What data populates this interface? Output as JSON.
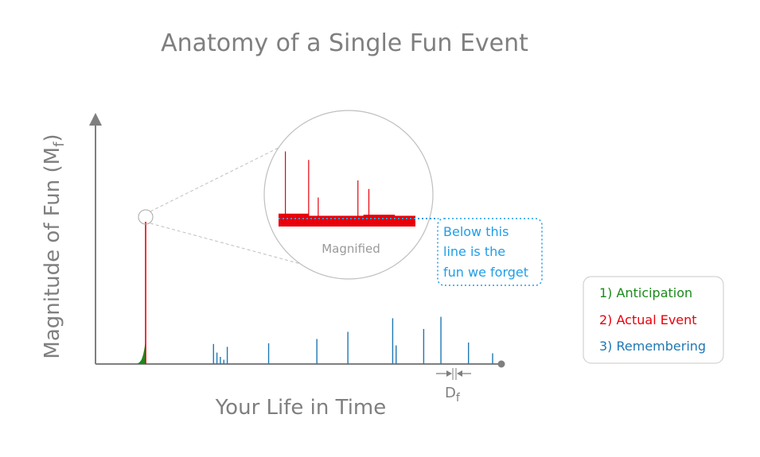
{
  "colors": {
    "anticipation": "#1a8a1a",
    "actual_event": "#e8000b",
    "remembering": "#1f78b4",
    "forget_line": "#1f9ee8",
    "axis": "#7f7f7f"
  },
  "chart_data": {
    "type": "bar",
    "title": "Anatomy of a Single Fun Event",
    "xlabel": "Your Life in Time",
    "ylabel_main": "Magnitude of Fun (M",
    "ylabel_sub": "f",
    "ylabel_close": ")",
    "ylim": [
      0,
      100
    ],
    "grid": false,
    "series": [
      {
        "name": "1) Anticipation",
        "kind": "area",
        "color": "#1a8a1a",
        "x": [
          0.0,
          1.0,
          2.0,
          3.0,
          3.5,
          4.0,
          4.5,
          5.0,
          5.5,
          6.0
        ],
        "values": [
          0.0,
          0.6,
          1.5,
          2.8,
          4.0,
          5.5,
          7.5,
          10.0,
          13.0,
          17.0
        ]
      },
      {
        "name": "2) Actual Event",
        "kind": "spike",
        "color": "#e8000b",
        "x": [
          6.2
        ],
        "values": [
          100
        ]
      },
      {
        "name": "3) Remembering",
        "kind": "bar",
        "color": "#1f78b4",
        "x": [
          8.0,
          8.5,
          9.0,
          9.5,
          10.0,
          16.0,
          23.0,
          27.5,
          34.0,
          34.5,
          38.5,
          41.0,
          45.0,
          48.5
        ],
        "values": [
          14,
          8,
          5,
          3,
          12,
          14.5,
          17.5,
          22.5,
          32,
          13,
          24.5,
          33,
          15,
          7.5
        ]
      }
    ],
    "xlim": [
      -6.0,
      51.0
    ]
  },
  "magnifier": {
    "label": "Magnified",
    "baseline": 0.1,
    "spikes": [
      {
        "x": 0.22,
        "value": 0.62
      },
      {
        "x": 0.05,
        "value": 0.7
      },
      {
        "x": 0.29,
        "value": 0.27
      },
      {
        "x": 0.58,
        "value": 0.43
      },
      {
        "x": 0.66,
        "value": 0.35
      },
      {
        "x": 0.17,
        "value": 0.05
      },
      {
        "x": 0.76,
        "value": 0.08
      }
    ],
    "blocks": [
      {
        "start": 0.0,
        "end": 0.22,
        "value": 0.12
      },
      {
        "start": 0.3,
        "end": 0.6,
        "value": 0.09
      },
      {
        "start": 0.62,
        "end": 0.85,
        "value": 0.11
      }
    ]
  },
  "note": {
    "lines": [
      "Below this",
      "line is the",
      "fun we forget"
    ]
  },
  "forget_marker": {
    "label_main": "D",
    "label_sub": "f"
  },
  "legend": {
    "placement": "right",
    "items": [
      {
        "label": "1) Anticipation",
        "color": "#1a8a1a"
      },
      {
        "label": "2) Actual Event",
        "color": "#e8000b"
      },
      {
        "label": "3) Remembering",
        "color": "#1f78b4"
      }
    ]
  }
}
